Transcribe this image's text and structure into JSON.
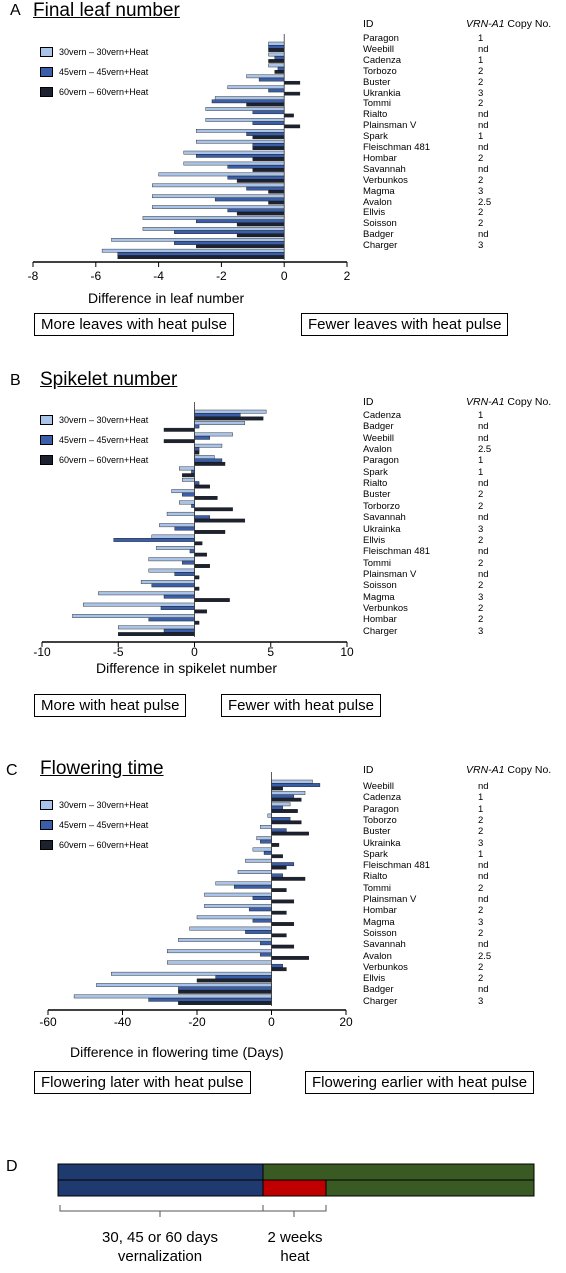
{
  "colors": {
    "c30": "#a9c4e8",
    "c45": "#3a5ea8",
    "c60": "#1d2230",
    "blue": "#1e3a6e",
    "green": "#3a5a24",
    "red": "#c00000"
  },
  "legend": [
    "30vern – 30vern+Heat",
    "45vern – 45vern+Heat",
    "60vern – 60vern+Heat"
  ],
  "id_header": "ID",
  "copy_header_italic": "VRN-A1",
  "copy_header_rest": " Copy No.",
  "panels": [
    {
      "letter": "A",
      "title": "Final leaf number",
      "xlabel": "Difference in leaf number",
      "notes": [
        "More leaves with heat pulse",
        "Fewer leaves with heat pulse"
      ],
      "ids": [
        "Paragon",
        "Weebill",
        "Cadenza",
        "Torbozo",
        "Buster",
        "Ukrankia",
        "Tommi",
        "Rialto",
        "Plainsman V",
        "Spark",
        "Fleischman 481",
        "Hombar",
        "Savannah",
        "Verbunkos",
        "Magma",
        "Avalon",
        "Ellvis",
        "Soisson",
        "Badger",
        "Charger"
      ],
      "copies": [
        "1",
        "nd",
        "1",
        "2",
        "2",
        "3",
        "2",
        "nd",
        "nd",
        "1",
        "nd",
        "2",
        "nd",
        "2",
        "3",
        "2.5",
        "2",
        "2",
        "nd",
        "3"
      ]
    },
    {
      "letter": "B",
      "title": "Spikelet number",
      "xlabel": "Difference in spikelet number",
      "notes": [
        "More with heat pulse",
        "Fewer with heat pulse"
      ],
      "ids": [
        "Cadenza",
        "Badger",
        "Weebill",
        "Avalon",
        "Paragon",
        "Spark",
        "Rialto",
        "Buster",
        "Torborzo",
        "Savannah",
        "Ukrainka",
        "Ellvis",
        "Fleischman 481",
        "Tommi",
        "Plainsman V",
        "Soisson",
        "Magma",
        "Verbunkos",
        "Hombar",
        "Charger"
      ],
      "copies": [
        "1",
        "nd",
        "nd",
        "2.5",
        "1",
        "1",
        "nd",
        "2",
        "2",
        "nd",
        "3",
        "2",
        "nd",
        "2",
        "nd",
        "2",
        "3",
        "2",
        "2",
        "3"
      ]
    },
    {
      "letter": "C",
      "title": "Flowering time",
      "xlabel": "Difference in flowering time (Days)",
      "notes": [
        "Flowering later with heat pulse",
        "Flowering earlier with heat pulse"
      ],
      "ids": [
        "Weebill",
        "Cadenza",
        "Paragon",
        "Toborzo",
        "Buster",
        "Ukrainka",
        "Spark",
        "Fleischman 481",
        "Rialto",
        "Tommi",
        "Plainsman V",
        "Hombar",
        "Magma",
        "Soisson",
        "Savannah",
        "Avalon",
        "Verbunkos",
        "Ellvis",
        "Badger",
        "Charger"
      ],
      "copies": [
        "nd",
        "1",
        "1",
        "2",
        "2",
        "3",
        "1",
        "nd",
        "nd",
        "2",
        "nd",
        "2",
        "3",
        "2",
        "nd",
        "2.5",
        "2",
        "2",
        "nd",
        "3"
      ]
    }
  ],
  "chart_data": [
    {
      "type": "bar",
      "orientation": "horizontal",
      "xlabel": "Difference in leaf number",
      "xlim": [
        -8,
        2
      ],
      "xticks": [
        "-8",
        "-6",
        "-4",
        "-2",
        "0",
        "2"
      ],
      "categories": [
        "Paragon",
        "Weebill",
        "Cadenza",
        "Torbozo",
        "Buster",
        "Ukrankia",
        "Tommi",
        "Rialto",
        "Plainsman V",
        "Spark",
        "Fleischman 481",
        "Hombar",
        "Savannah",
        "Verbunkos",
        "Magma",
        "Avalon",
        "Ellvis",
        "Soisson",
        "Badger",
        "Charger"
      ],
      "series": [
        {
          "name": "30vern – 30vern+Heat",
          "values": [
            -0.5,
            -0.5,
            -0.5,
            -1.2,
            -1.8,
            -2.2,
            -2.5,
            -2.5,
            -2.8,
            -2.8,
            -3.2,
            -3.2,
            -4.0,
            -4.2,
            -4.2,
            -4.2,
            -4.5,
            -4.5,
            -5.5,
            -5.8
          ]
        },
        {
          "name": "45vern – 45vern+Heat",
          "values": [
            -0.5,
            -0.3,
            -0.2,
            -0.8,
            -0.5,
            -2.3,
            -1.0,
            -1.0,
            -1.2,
            -1.0,
            -2.8,
            -1.8,
            -1.8,
            -1.2,
            -2.2,
            -1.8,
            -2.8,
            -3.5,
            -3.5,
            -5.3
          ]
        },
        {
          "name": "60vern – 60vern+Heat",
          "values": [
            -0.5,
            -0.5,
            -0.3,
            0.5,
            0.5,
            -1.2,
            0.3,
            0.5,
            -1.0,
            -1.0,
            -1.0,
            -1.0,
            -1.5,
            -0.5,
            -0.5,
            -1.5,
            -1.5,
            -1.5,
            -2.8,
            -5.3
          ]
        }
      ]
    },
    {
      "type": "bar",
      "orientation": "horizontal",
      "xlabel": "Difference in spikelet number",
      "xlim": [
        -10,
        10
      ],
      "xticks": [
        "-10",
        "-5",
        "0",
        "5",
        "10"
      ],
      "categories": [
        "Cadenza",
        "Badger",
        "Weebill",
        "Avalon",
        "Paragon",
        "Spark",
        "Rialto",
        "Buster",
        "Torborzo",
        "Savannah",
        "Ukrainka",
        "Ellvis",
        "Fleischman 481",
        "Tommi",
        "Plainsman V",
        "Soisson",
        "Magma",
        "Verbunkos",
        "Hombar",
        "Charger"
      ],
      "series": [
        {
          "name": "30vern – 30vern+Heat",
          "values": [
            4.7,
            3.3,
            2.5,
            1.8,
            1.3,
            -1.0,
            -0.8,
            -1.5,
            -1.0,
            -1.8,
            -2.3,
            -2.8,
            -2.5,
            -3.0,
            -3.0,
            -3.5,
            -6.3,
            -7.3,
            -8.0,
            -5.0
          ]
        },
        {
          "name": "45vern – 45vern+Heat",
          "values": [
            3.0,
            0.3,
            1.0,
            0.3,
            1.8,
            -0.2,
            0.3,
            -0.8,
            -0.2,
            1.0,
            -1.3,
            -5.3,
            -0.3,
            -0.8,
            -1.3,
            -2.8,
            -2.0,
            -2.2,
            -3.0,
            -2.0
          ]
        },
        {
          "name": "60vern – 60vern+Heat",
          "values": [
            4.5,
            -2.0,
            -2.0,
            0.3,
            2.0,
            -0.8,
            1.0,
            1.5,
            2.5,
            3.3,
            2.0,
            0.5,
            0.8,
            1.0,
            0.3,
            0.3,
            2.3,
            0.8,
            0.3,
            -5.0
          ]
        }
      ]
    },
    {
      "type": "bar",
      "orientation": "horizontal",
      "xlabel": "Difference in flowering time (Days)",
      "xlim": [
        -60,
        20
      ],
      "xticks": [
        "-60",
        "-40",
        "-20",
        "0",
        "20"
      ],
      "categories": [
        "Weebill",
        "Cadenza",
        "Paragon",
        "Toborzo",
        "Buster",
        "Ukrainka",
        "Spark",
        "Fleischman 481",
        "Rialto",
        "Tommi",
        "Plainsman V",
        "Hombar",
        "Magma",
        "Soisson",
        "Savannah",
        "Avalon",
        "Verbunkos",
        "Ellvis",
        "Badger",
        "Charger"
      ],
      "series": [
        {
          "name": "30vern – 30vern+Heat",
          "values": [
            11,
            9,
            5,
            -1,
            -3,
            -4,
            -5,
            -7,
            -9,
            -15,
            -18,
            -18,
            -20,
            -22,
            -25,
            -28,
            -28,
            -43,
            -47,
            -53
          ]
        },
        {
          "name": "45vern – 45vern+Heat",
          "values": [
            13,
            6,
            3,
            5,
            4,
            -3,
            -2,
            6,
            3,
            -10,
            -5,
            -6,
            -5,
            -7,
            -3,
            -3,
            3,
            -15,
            -25,
            -33
          ]
        },
        {
          "name": "60vern – 60vern+Heat",
          "values": [
            3,
            8,
            7,
            8,
            10,
            2,
            3,
            4,
            9,
            4,
            6,
            4,
            6,
            4,
            6,
            10,
            4,
            -20,
            -25,
            -25
          ]
        }
      ]
    }
  ],
  "timeline": {
    "letter": "D",
    "left_label": [
      "30, 45 or 60 days",
      "vernalization"
    ],
    "right_label": [
      "2 weeks",
      "heat"
    ]
  }
}
